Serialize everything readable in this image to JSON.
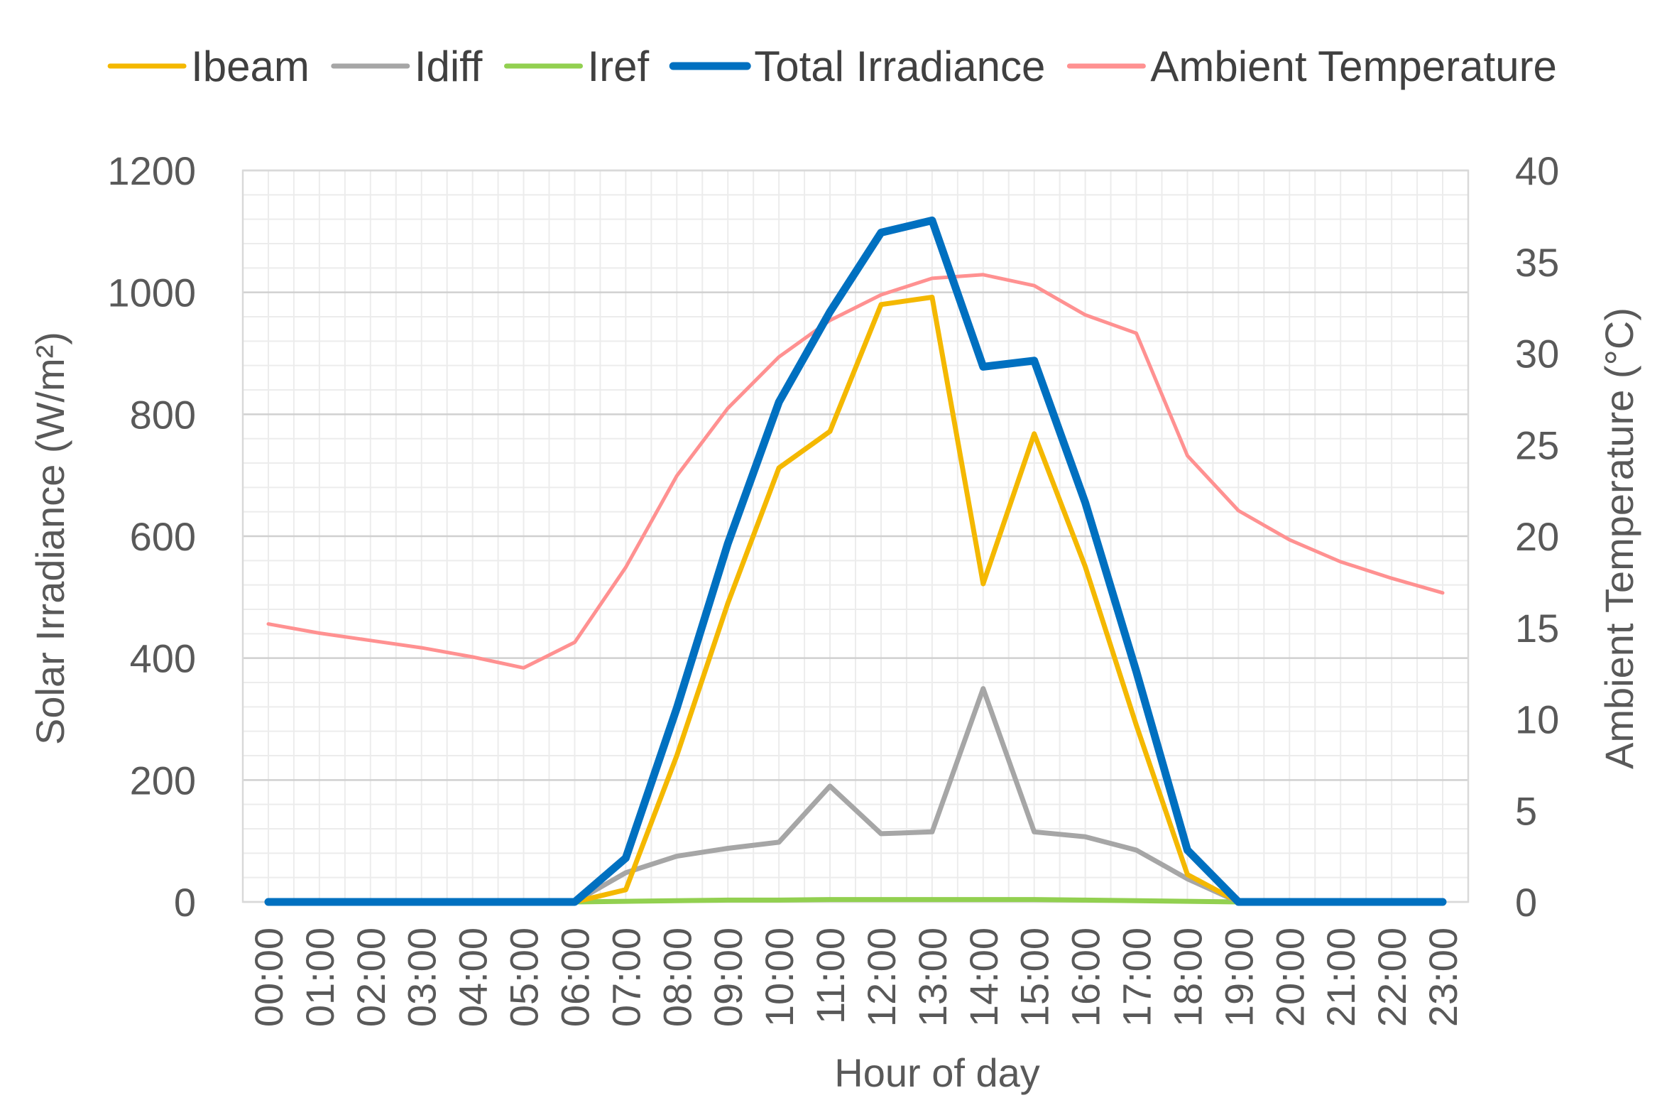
{
  "chart_data": {
    "type": "line",
    "xlabel": "Hour of day",
    "ylabel": "Solar Irradiance (W/m²)",
    "ylabel_right": "Ambient Temperature (°C)",
    "ylim": [
      0,
      1200
    ],
    "ylim_right": [
      0,
      40
    ],
    "yticks": [
      0,
      200,
      400,
      600,
      800,
      1000,
      1200
    ],
    "yticks_right": [
      0,
      5,
      10,
      15,
      20,
      25,
      30,
      35,
      40
    ],
    "grid": true,
    "legend_position": "top",
    "categories": [
      "00:00",
      "01:00",
      "02:00",
      "03:00",
      "04:00",
      "05:00",
      "06:00",
      "07:00",
      "08:00",
      "09:00",
      "10:00",
      "11:00",
      "12:00",
      "13:00",
      "14:00",
      "15:00",
      "16:00",
      "17:00",
      "18:00",
      "19:00",
      "20:00",
      "21:00",
      "22:00",
      "23:00"
    ],
    "series": [
      {
        "name": "Ibeam",
        "axis": "left",
        "color": "#F4B800",
        "values": [
          0,
          0,
          0,
          0,
          0,
          0,
          0,
          20,
          240,
          490,
          712,
          772,
          980,
          992,
          522,
          768,
          550,
          290,
          45,
          0,
          0,
          0,
          0,
          0
        ]
      },
      {
        "name": "Idiff",
        "axis": "left",
        "color": "#A6A6A6",
        "values": [
          0,
          0,
          0,
          0,
          0,
          0,
          0,
          48,
          75,
          88,
          98,
          190,
          112,
          115,
          350,
          115,
          107,
          85,
          38,
          0,
          0,
          0,
          0,
          0
        ]
      },
      {
        "name": "Iref",
        "axis": "left",
        "color": "#92D050",
        "values": [
          0,
          0,
          0,
          0,
          0,
          0,
          0,
          1,
          2,
          3,
          3,
          4,
          4,
          4,
          4,
          4,
          3,
          2,
          1,
          0,
          0,
          0,
          0,
          0
        ]
      },
      {
        "name": "Total Irradiance",
        "axis": "left",
        "color": "#0070C0",
        "values": [
          0,
          0,
          0,
          0,
          0,
          0,
          0,
          72,
          318,
          588,
          820,
          968,
          1098,
          1118,
          878,
          888,
          655,
          378,
          85,
          0,
          0,
          0,
          0,
          0
        ]
      },
      {
        "name": "Ambient Temperature",
        "axis": "right",
        "color": "#FF9191",
        "values": [
          15.2,
          14.7,
          14.3,
          13.9,
          13.4,
          12.8,
          14.2,
          18.3,
          23.3,
          27.0,
          29.8,
          31.8,
          33.2,
          34.1,
          34.3,
          33.7,
          32.1,
          31.1,
          24.4,
          21.4,
          19.8,
          18.6,
          17.7,
          16.9
        ]
      }
    ]
  }
}
